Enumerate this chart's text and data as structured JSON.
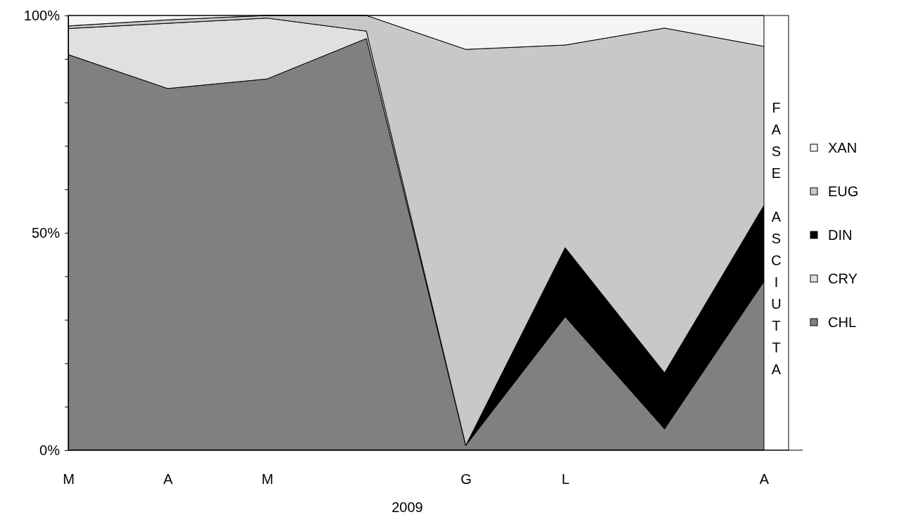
{
  "chart_data": {
    "type": "area",
    "stacked": true,
    "xlabel": "2009",
    "categories": [
      "M",
      "A",
      "M",
      null,
      "G",
      "L",
      null,
      "A"
    ],
    "ylim": [
      0,
      100
    ],
    "yticks": [
      {
        "value": 0,
        "label": "0%"
      },
      {
        "value": 10,
        "label": null
      },
      {
        "value": 20,
        "label": null
      },
      {
        "value": 30,
        "label": null
      },
      {
        "value": 40,
        "label": null
      },
      {
        "value": 50,
        "label": "50%"
      },
      {
        "value": 60,
        "label": null
      },
      {
        "value": 70,
        "label": null
      },
      {
        "value": 80,
        "label": null
      },
      {
        "value": 90,
        "label": null
      },
      {
        "value": 100,
        "label": "100%"
      }
    ],
    "legend": "right",
    "grid": false,
    "annotations": [
      "FASE ASCIUTTA"
    ],
    "series": [
      {
        "name": "CHL",
        "color": "#808080",
        "values": [
          91,
          83.2,
          85.4,
          94.7,
          1.1,
          30.7,
          4.9,
          38.8
        ]
      },
      {
        "name": "CRY",
        "color": "#e0e0e0",
        "values": [
          6,
          15,
          14,
          1.7,
          0,
          null,
          null,
          null
        ]
      },
      {
        "name": "DIN",
        "color": "#000000",
        "values": [
          null,
          null,
          null,
          null,
          0,
          15.9,
          12.9,
          17.5
        ]
      },
      {
        "name": "EUG",
        "color": "#c8c8c8",
        "values": [
          0.6,
          0.8,
          0.6,
          3.6,
          91.1,
          46.6,
          79.3,
          36.6
        ]
      },
      {
        "name": "XAN",
        "color": "#f4f4f4",
        "values": [
          2.4,
          1,
          0,
          0,
          7.8,
          6.8,
          2.9,
          7.1
        ]
      }
    ]
  }
}
